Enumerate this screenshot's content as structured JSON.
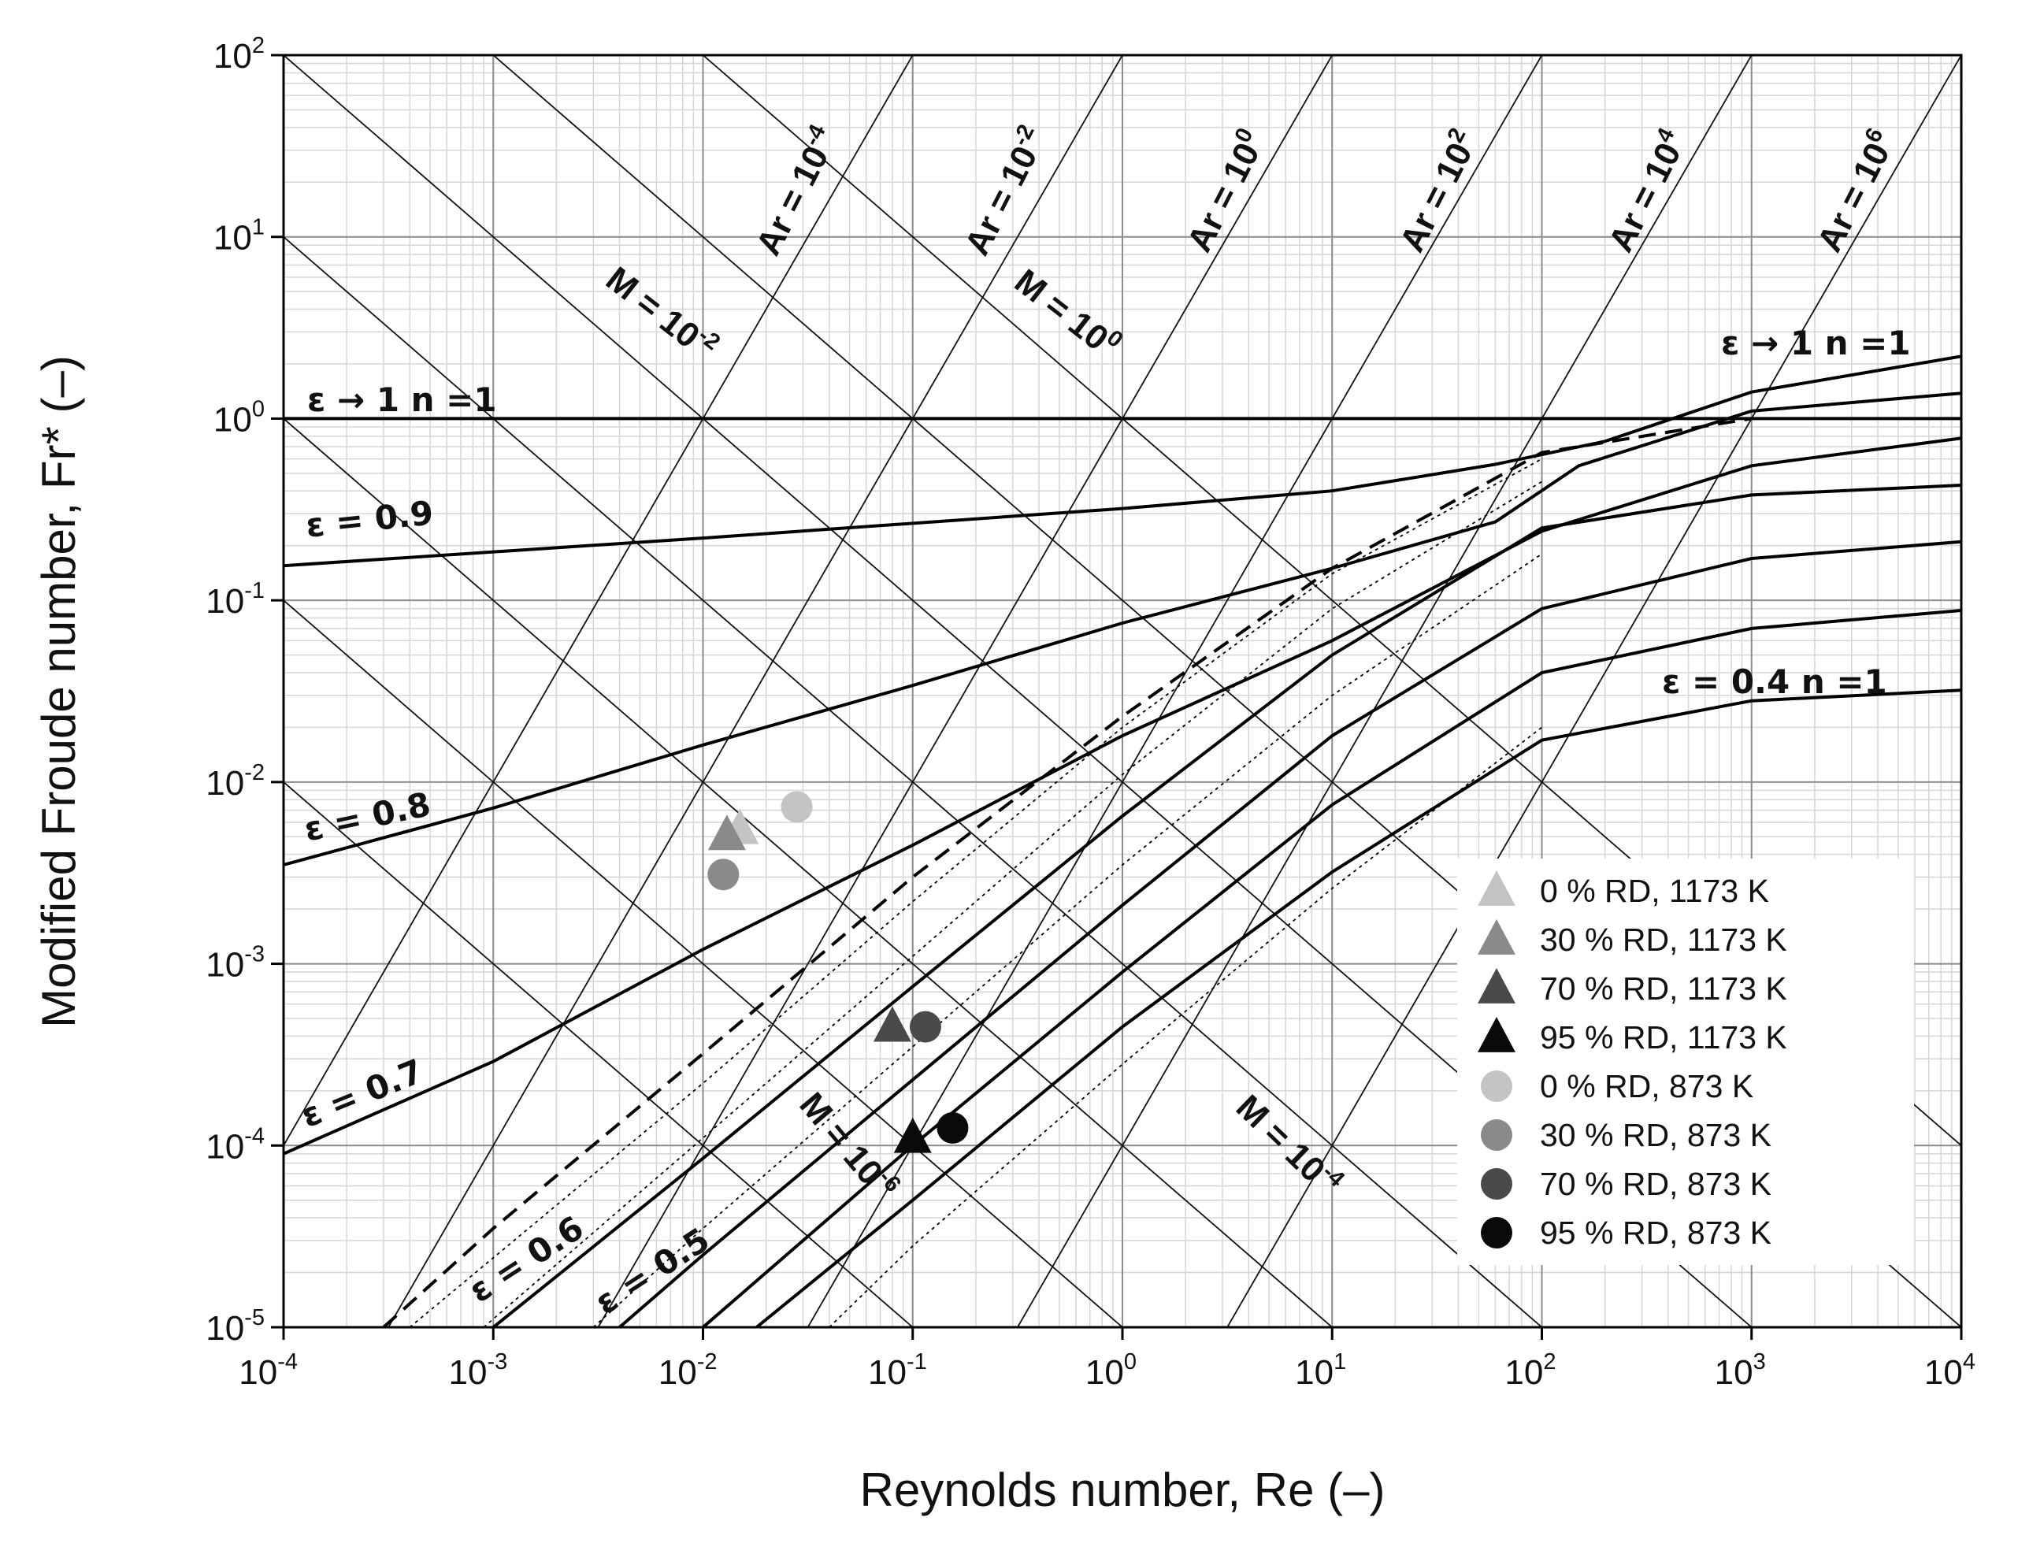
{
  "chart_data": {
    "type": "scatter",
    "x_scale": "log",
    "y_scale": "log",
    "xlabel": "Reynolds number, Re (–)",
    "ylabel": "Modified Froude number, Fr* (–)",
    "xlim": [
      0.0001,
      10000
    ],
    "ylim": [
      1e-05,
      100
    ],
    "x_ticks": [
      {
        "base": "10",
        "exp": "-4"
      },
      {
        "base": "10",
        "exp": "-3"
      },
      {
        "base": "10",
        "exp": "-2"
      },
      {
        "base": "10",
        "exp": "-1"
      },
      {
        "base": "10",
        "exp": "0"
      },
      {
        "base": "10",
        "exp": "1"
      },
      {
        "base": "10",
        "exp": "2"
      },
      {
        "base": "10",
        "exp": "3"
      },
      {
        "base": "10",
        "exp": "4"
      }
    ],
    "y_ticks": [
      {
        "base": "10",
        "exp": "-5"
      },
      {
        "base": "10",
        "exp": "-4"
      },
      {
        "base": "10",
        "exp": "-3"
      },
      {
        "base": "10",
        "exp": "-2"
      },
      {
        "base": "10",
        "exp": "-1"
      },
      {
        "base": "10",
        "exp": "0"
      },
      {
        "base": "10",
        "exp": "1"
      },
      {
        "base": "10",
        "exp": "2"
      }
    ],
    "grid": true,
    "legend_position": "bottom-right",
    "archimedes_lines": [
      {
        "label": "Ar = 10",
        "exp": "-4",
        "value": 0.0001
      },
      {
        "label": "Ar = 10",
        "exp": "-2",
        "value": 0.01
      },
      {
        "label": "Ar = 10",
        "exp": "0",
        "value": 1
      },
      {
        "label": "Ar = 10",
        "exp": "2",
        "value": 100
      },
      {
        "label": "Ar = 10",
        "exp": "4",
        "value": 10000
      },
      {
        "label": "Ar = 10",
        "exp": "6",
        "value": 1000000
      }
    ],
    "morton_lines": [
      {
        "label": "M = 10",
        "exp": "-2",
        "value": 0.01
      },
      {
        "label": "M = 10",
        "exp": "0",
        "value": 1
      },
      {
        "label": "M = 10",
        "exp": "-6",
        "value": 1e-06
      },
      {
        "label": "M = 10",
        "exp": "-4",
        "value": 0.0001
      },
      {
        "value": 1e-08
      },
      {
        "value": 1e-10
      },
      {
        "value": 1e-12
      }
    ],
    "curve_labels": [
      {
        "text": "ε → 1   n =1"
      },
      {
        "text": "ε = 0.9"
      },
      {
        "text": "ε = 0.8"
      },
      {
        "text": "ε = 0.7"
      },
      {
        "text": "ε = 0.6"
      },
      {
        "text": "ε = 0.5"
      },
      {
        "text": "ε → 1   n =1"
      },
      {
        "text": "ε = 0.4   n =1"
      }
    ],
    "curves": [
      {
        "id": "eps1-n1",
        "style": "solid",
        "points": [
          [
            0.0001,
            1.0
          ],
          [
            10000,
            1.0
          ]
        ]
      },
      {
        "id": "eps0.9",
        "style": "solid",
        "points": [
          [
            0.0001,
            0.155
          ],
          [
            0.01,
            0.22
          ],
          [
            1,
            0.32
          ],
          [
            10,
            0.4
          ],
          [
            60,
            0.56
          ],
          [
            200,
            0.75
          ],
          [
            1000,
            1.4
          ],
          [
            10000,
            2.2
          ]
        ]
      },
      {
        "id": "eps0.8",
        "style": "solid",
        "points": [
          [
            0.0001,
            0.0035
          ],
          [
            0.001,
            0.0072
          ],
          [
            0.01,
            0.016
          ],
          [
            0.1,
            0.034
          ],
          [
            1,
            0.075
          ],
          [
            10,
            0.15
          ],
          [
            60,
            0.27
          ],
          [
            150,
            0.55
          ],
          [
            1000,
            1.1
          ],
          [
            10000,
            1.38
          ]
        ]
      },
      {
        "id": "eps0.7",
        "style": "solid",
        "points": [
          [
            0.0001,
            9e-05
          ],
          [
            0.001,
            0.00029
          ],
          [
            0.01,
            0.0012
          ],
          [
            0.1,
            0.0045
          ],
          [
            1,
            0.018
          ],
          [
            10,
            0.06
          ],
          [
            100,
            0.24
          ],
          [
            1000,
            0.55
          ],
          [
            10000,
            0.78
          ]
        ]
      },
      {
        "id": "eps0.6",
        "style": "dashed",
        "points": [
          [
            0.0003,
            1e-05
          ],
          [
            0.001,
            3.5e-05
          ],
          [
            0.01,
            0.00032
          ],
          [
            0.1,
            0.003
          ],
          [
            1,
            0.023
          ],
          [
            10,
            0.15
          ],
          [
            100,
            0.65
          ],
          [
            1000,
            1.0
          ]
        ]
      },
      {
        "id": "eps0.5",
        "style": "solid",
        "points": [
          [
            0.001,
            1e-05
          ],
          [
            0.01,
            8.5e-05
          ],
          [
            0.1,
            0.00075
          ],
          [
            1,
            0.0065
          ],
          [
            10,
            0.05
          ],
          [
            100,
            0.25
          ],
          [
            1000,
            0.38
          ],
          [
            10000,
            0.43
          ]
        ]
      },
      {
        "id": "eps0.45",
        "style": "solid",
        "points": [
          [
            0.004,
            1e-05
          ],
          [
            0.01,
            2.5e-05
          ],
          [
            0.1,
            0.00023
          ],
          [
            1,
            0.0021
          ],
          [
            10,
            0.018
          ],
          [
            100,
            0.09
          ],
          [
            1000,
            0.17
          ],
          [
            10000,
            0.21
          ]
        ]
      },
      {
        "id": "eps0.4",
        "style": "solid",
        "points": [
          [
            0.018,
            1e-05
          ],
          [
            0.1,
            5e-05
          ],
          [
            1,
            0.00045
          ],
          [
            10,
            0.0032
          ],
          [
            100,
            0.017
          ],
          [
            1000,
            0.028
          ],
          [
            10000,
            0.032
          ]
        ]
      },
      {
        "id": "eps0.4-alt",
        "style": "solid",
        "points": [
          [
            0.01,
            1e-05
          ],
          [
            0.1,
            0.0001
          ],
          [
            1,
            0.0009
          ],
          [
            10,
            0.0075
          ],
          [
            100,
            0.04
          ],
          [
            1000,
            0.07
          ],
          [
            10000,
            0.088
          ]
        ]
      },
      {
        "id": "dotted-1",
        "style": "dotted",
        "points": [
          [
            0.0004,
            1e-05
          ],
          [
            0.01,
            0.00022
          ],
          [
            0.1,
            0.0022
          ],
          [
            1,
            0.02
          ],
          [
            10,
            0.14
          ],
          [
            100,
            0.6
          ]
        ]
      },
      {
        "id": "dotted-2",
        "style": "dotted",
        "points": [
          [
            0.0009,
            1e-05
          ],
          [
            0.01,
            0.00011
          ],
          [
            0.1,
            0.0011
          ],
          [
            1,
            0.011
          ],
          [
            10,
            0.09
          ],
          [
            100,
            0.45
          ]
        ]
      },
      {
        "id": "dotted-3",
        "style": "dotted",
        "points": [
          [
            0.003,
            1e-05
          ],
          [
            0.01,
            3.5e-05
          ],
          [
            0.1,
            0.00035
          ],
          [
            1,
            0.0035
          ],
          [
            10,
            0.03
          ],
          [
            100,
            0.18
          ]
        ]
      },
      {
        "id": "dotted-4",
        "style": "dotted",
        "points": [
          [
            0.04,
            1e-05
          ],
          [
            0.1,
            2.8e-05
          ],
          [
            1,
            0.00028
          ],
          [
            10,
            0.0026
          ],
          [
            100,
            0.02
          ]
        ]
      }
    ],
    "series": [
      {
        "name": "0 % RD, 1173 K",
        "marker": "triangle",
        "color": "#c4c4c4",
        "points": [
          [
            0.015,
            0.0055
          ]
        ]
      },
      {
        "name": "30 % RD, 1173 K",
        "marker": "triangle",
        "color": "#8a8a8a",
        "points": [
          [
            0.013,
            0.0051
          ]
        ]
      },
      {
        "name": "70 % RD, 1173 K",
        "marker": "triangle",
        "color": "#4a4a4a",
        "points": [
          [
            0.08,
            0.00045
          ]
        ]
      },
      {
        "name": "95 % RD, 1173 K",
        "marker": "triangle",
        "color": "#0a0a0a",
        "points": [
          [
            0.1,
            0.00011
          ]
        ]
      },
      {
        "name": "0 % RD, 873 K",
        "marker": "circle",
        "color": "#c4c4c4",
        "points": [
          [
            0.028,
            0.0073
          ]
        ]
      },
      {
        "name": "30 % RD, 873 K",
        "marker": "circle",
        "color": "#8a8a8a",
        "points": [
          [
            0.0125,
            0.0031
          ]
        ]
      },
      {
        "name": "70 % RD, 873 K",
        "marker": "circle",
        "color": "#4a4a4a",
        "points": [
          [
            0.115,
            0.00045
          ]
        ]
      },
      {
        "name": "95 % RD, 873 K",
        "marker": "circle",
        "color": "#0a0a0a",
        "points": [
          [
            0.155,
            0.000125
          ]
        ]
      }
    ]
  }
}
